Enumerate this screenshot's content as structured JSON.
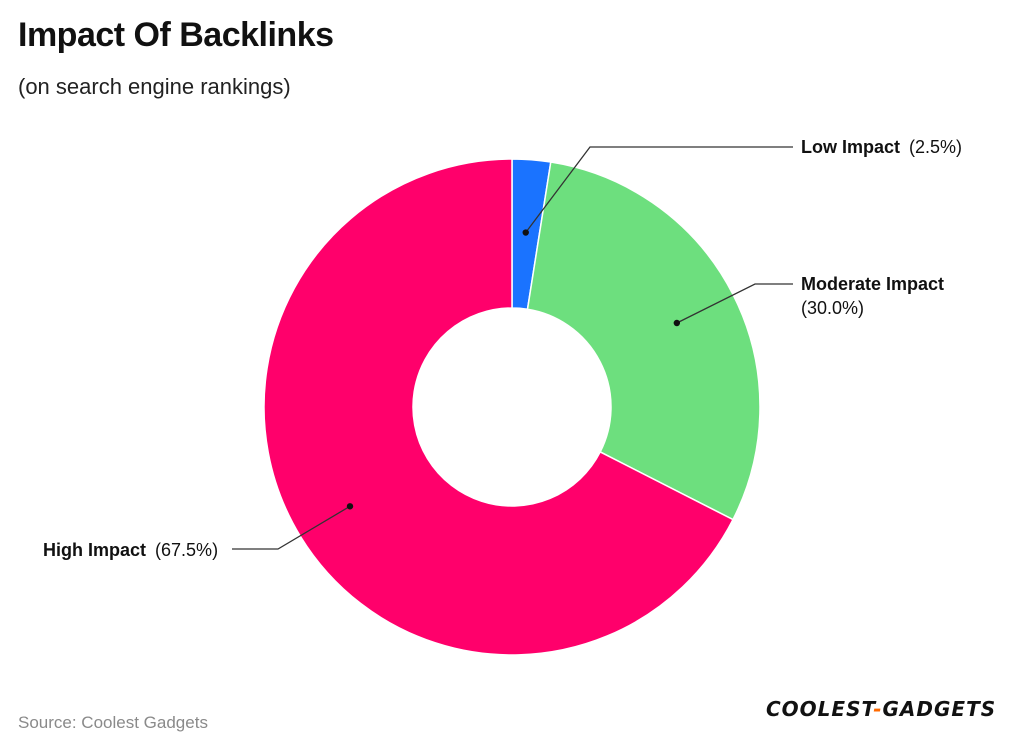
{
  "header": {
    "title": "Impact Of Backlinks",
    "subtitle": "(on search engine rankings)"
  },
  "footer": {
    "source": "Source: Coolest Gadgets",
    "logo_left": "COOLEST",
    "logo_sep": "-",
    "logo_right": "GADGETS"
  },
  "chart_data": {
    "type": "pie",
    "title": "Impact Of Backlinks",
    "subtitle": "(on search engine rankings)",
    "donut": true,
    "slices": [
      {
        "name": "Low Impact",
        "value": 2.5,
        "label_value": "(2.5%)",
        "color": "#1a73ff"
      },
      {
        "name": "Moderate Impact",
        "value": 30.0,
        "label_value": "(30.0%)",
        "color": "#6ddf7e"
      },
      {
        "name": "High Impact",
        "value": 67.5,
        "label_value": "(67.5%)",
        "color": "#ff006b"
      }
    ]
  }
}
